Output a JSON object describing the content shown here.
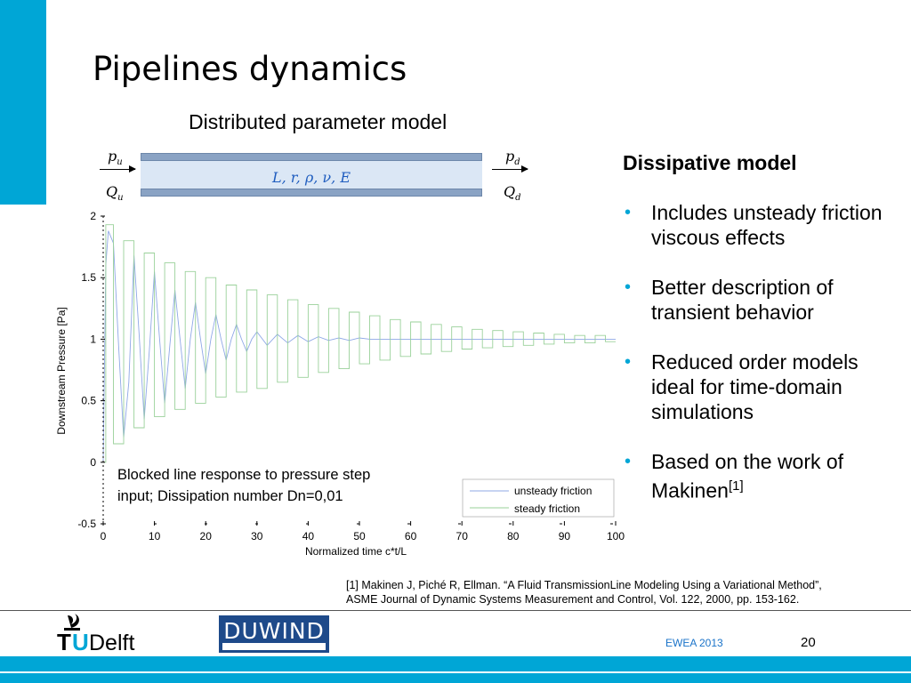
{
  "slide": {
    "title": "Pipelines dynamics",
    "subtitle": "Distributed parameter model",
    "page_number": "20",
    "event": "EWEA 2013"
  },
  "pipe": {
    "params": "L, r, ρ, ν, E",
    "inlet_pressure": "p",
    "inlet_pressure_sub": "u",
    "inlet_flow": "Q",
    "inlet_flow_sub": "u",
    "outlet_pressure": "p",
    "outlet_pressure_sub": "d",
    "outlet_flow": "Q",
    "outlet_flow_sub": "d",
    "wall_color": "#8aa3c4",
    "fluid_color": "#dbe7f5"
  },
  "right": {
    "heading": "Dissipative model",
    "bullets": [
      "Includes unsteady friction viscous effects",
      "Better description of transient behavior",
      "Reduced order models ideal for time-domain simulations",
      "Based on the work of Makinen"
    ],
    "citation_mark": "[1]"
  },
  "reference": {
    "line1": "[1] Makinen J, Piché R, Ellman.  “A Fluid TransmissionLine Modeling Using a Variational Method”,",
    "line2": "ASME Journal of Dynamic Systems Measurement and Control, Vol. 122, 2000, pp. 153-162."
  },
  "logos": {
    "tudelft_t": "T",
    "tudelft_u": "U",
    "tudelft_delft": "Delft",
    "duwind": "DUWIND",
    "tudelft_color": "#00a6d6"
  },
  "colors": {
    "accent": "#00a6d6",
    "unsteady_series": "#8fa8e6",
    "steady_series": "#9ad19a"
  },
  "chart_data": {
    "type": "line",
    "xlabel": "Normalized time c*t/L",
    "ylabel": "Downstream Pressure [Pa]",
    "xlim": [
      0,
      100
    ],
    "ylim": [
      -0.5,
      2
    ],
    "x_ticks": [
      "0",
      "10",
      "20",
      "30",
      "40",
      "50",
      "60",
      "70",
      "80",
      "90",
      "100"
    ],
    "y_ticks": [
      "2",
      "1.5",
      "1",
      "0.5",
      "0",
      "-0.5"
    ],
    "grid": false,
    "legend_position": "bottom-right",
    "annotation": {
      "line1": "Blocked line response to pressure step",
      "line2": "input; Dissipation number Dn=0,01"
    },
    "series": [
      {
        "name": "unsteady friction",
        "color": "#8fa8e6",
        "x": [
          0,
          0.5,
          1,
          2,
          3,
          4,
          5,
          6,
          7,
          8,
          9,
          10,
          11,
          12,
          13,
          14,
          15,
          16,
          17,
          18,
          19,
          20,
          21,
          22,
          23,
          24,
          25,
          26,
          27,
          28,
          29,
          30,
          32,
          34,
          36,
          38,
          40,
          42,
          44,
          46,
          48,
          50,
          52,
          54,
          56,
          58,
          60,
          62,
          64,
          66,
          68,
          70,
          72,
          74,
          76,
          78,
          80,
          82,
          84,
          86,
          88,
          90,
          92,
          94,
          96,
          98,
          100
        ],
        "values": [
          0,
          1.6,
          1.88,
          1.78,
          0.95,
          0.2,
          0.65,
          1.68,
          1.05,
          0.35,
          0.9,
          1.55,
          1.0,
          0.48,
          0.95,
          1.4,
          1.0,
          0.6,
          1.0,
          1.3,
          1.0,
          0.72,
          1.0,
          1.2,
          1.0,
          0.83,
          1.0,
          1.12,
          1.0,
          0.9,
          1.0,
          1.06,
          0.95,
          1.04,
          0.97,
          1.03,
          0.98,
          1.02,
          0.99,
          1.01,
          0.99,
          1.01,
          1.0,
          1.0,
          1.0,
          1.0,
          1.0,
          1.0,
          1.0,
          1.0,
          1.0,
          1.0,
          1.0,
          1.0,
          1.0,
          1.0,
          1.0,
          1.0,
          1.0,
          1.0,
          1.0,
          1.0,
          1.0,
          1.0,
          1.0,
          1.0,
          1.0
        ]
      },
      {
        "name": "steady friction",
        "color": "#9ad19a",
        "x": [
          0,
          0.5,
          0.5,
          2,
          2,
          4,
          4,
          6,
          6,
          8,
          8,
          10,
          10,
          12,
          12,
          14,
          14,
          16,
          16,
          18,
          18,
          20,
          20,
          22,
          22,
          24,
          24,
          26,
          26,
          28,
          28,
          30,
          30,
          32,
          32,
          34,
          34,
          36,
          36,
          38,
          38,
          40,
          40,
          42,
          42,
          44,
          44,
          46,
          46,
          48,
          48,
          50,
          50,
          52,
          52,
          54,
          54,
          56,
          56,
          58,
          58,
          60,
          60,
          62,
          62,
          64,
          64,
          66,
          66,
          68,
          68,
          70,
          70,
          72,
          72,
          74,
          74,
          76,
          76,
          78,
          78,
          80,
          80,
          82,
          82,
          84,
          84,
          86,
          86,
          88,
          88,
          90,
          90,
          92,
          92,
          94,
          94,
          96,
          96,
          98,
          98,
          100
        ],
        "values": [
          0,
          0,
          1.93,
          1.93,
          0.15,
          0.15,
          1.8,
          1.8,
          0.28,
          0.28,
          1.7,
          1.7,
          0.37,
          0.37,
          1.62,
          1.62,
          0.43,
          0.43,
          1.55,
          1.55,
          0.48,
          0.48,
          1.5,
          1.5,
          0.53,
          0.53,
          1.44,
          1.44,
          0.57,
          0.57,
          1.4,
          1.4,
          0.6,
          0.6,
          1.36,
          1.36,
          0.65,
          0.65,
          1.32,
          1.32,
          0.69,
          0.69,
          1.28,
          1.28,
          0.73,
          0.73,
          1.25,
          1.25,
          0.76,
          0.76,
          1.22,
          1.22,
          0.8,
          0.8,
          1.19,
          1.19,
          0.83,
          0.83,
          1.16,
          1.16,
          0.86,
          0.86,
          1.14,
          1.14,
          0.88,
          0.88,
          1.12,
          1.12,
          0.9,
          0.9,
          1.1,
          1.1,
          0.92,
          0.92,
          1.08,
          1.08,
          0.93,
          0.93,
          1.07,
          1.07,
          0.94,
          0.94,
          1.06,
          1.06,
          0.95,
          0.95,
          1.05,
          1.05,
          0.96,
          0.96,
          1.04,
          1.04,
          0.97,
          0.97,
          1.03,
          1.03,
          0.97,
          0.97,
          1.03,
          1.03,
          0.98,
          0.98
        ]
      }
    ]
  }
}
